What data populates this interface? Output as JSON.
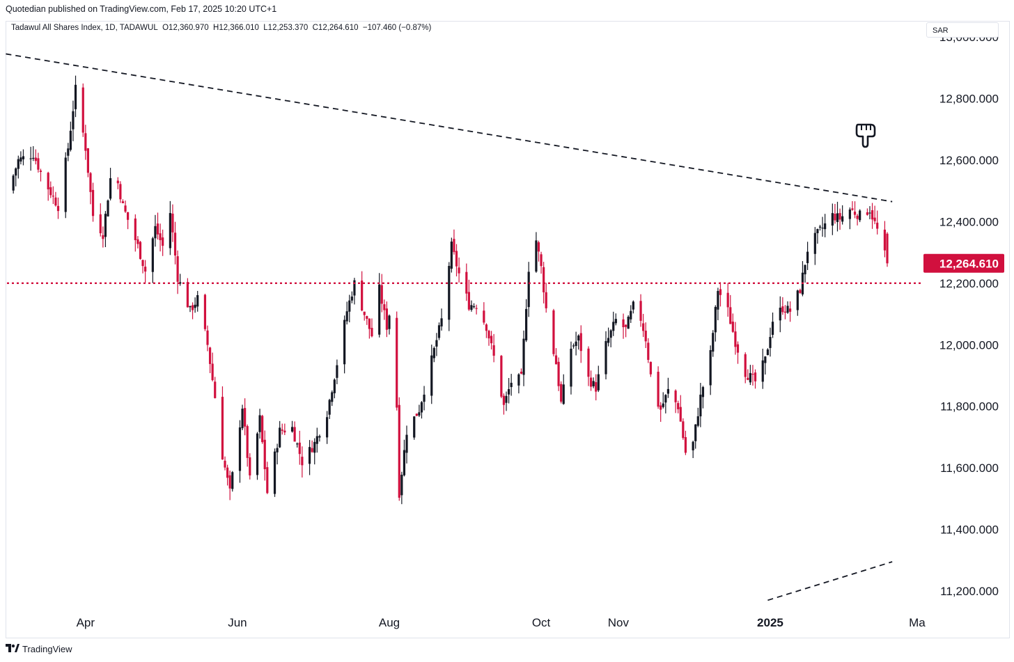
{
  "header": {
    "credit": "Quotedian published on TradingView.com, Feb 17, 2025 10:20 UTC+1"
  },
  "legend": {
    "symbol": "Tadawul All Shares Index, 1D, TADAWUL",
    "open": "O12,360.970",
    "high": "H12,366.010",
    "low": "L12,253.370",
    "close": "C12,264.610",
    "change": "−107.460 (−0.87%)"
  },
  "currency_label": "SAR",
  "footer": {
    "brand": "TradingView",
    "brand_icon": "tradingview-logo-icon"
  },
  "annotation_icon": "pointing-hand-down-icon",
  "colors": {
    "up": "#131722",
    "down": "#d1103e",
    "price_badge": "#d1103e",
    "support_line": "#d1103e",
    "trendline": "#131722"
  },
  "chart_data": {
    "type": "candlestick",
    "title": "",
    "xlabel": "",
    "ylabel": "",
    "ylim": [
      11130,
      13050
    ],
    "date_range": [
      "2024-03-01",
      "2025-02-17"
    ],
    "y_ticks": [
      "13,000.000",
      "12,800.000",
      "12,600.000",
      "12,400.000",
      "12,200.000",
      "12,000.000",
      "11,800.000",
      "11,600.000",
      "11,400.000",
      "11,200.000"
    ],
    "y_tick_values": [
      13000,
      12800,
      12600,
      12400,
      12200,
      12000,
      11800,
      11600,
      11400,
      11200
    ],
    "x_ticks": [
      {
        "label": "Apr",
        "date": "2024-04-01",
        "bold": false
      },
      {
        "label": "Jun",
        "date": "2024-06-01",
        "bold": false
      },
      {
        "label": "Aug",
        "date": "2024-08-01",
        "bold": false
      },
      {
        "label": "Oct",
        "date": "2024-10-01",
        "bold": false
      },
      {
        "label": "Nov",
        "date": "2024-11-01",
        "bold": false
      },
      {
        "label": "2025",
        "date": "2025-01-01",
        "bold": true
      },
      {
        "label": "Ma",
        "date": "2025-03-01",
        "bold": false
      }
    ],
    "last_price": 12264.61,
    "last_price_label": "12,264.610",
    "support_level": 12200,
    "trendlines": [
      {
        "style": "dashed",
        "from": {
          "date": "2024-02-29",
          "value": 12945
        },
        "to": {
          "date": "2025-02-19",
          "value": 12465
        }
      },
      {
        "style": "dashed",
        "from": {
          "date": "2024-12-31",
          "value": 11170
        },
        "to": {
          "date": "2025-02-19",
          "value": 11295
        }
      }
    ],
    "anchors": [
      [
        "2024-03-01",
        12500
      ],
      [
        "2024-03-05",
        12600
      ],
      [
        "2024-03-11",
        12620
      ],
      [
        "2024-03-15",
        12540
      ],
      [
        "2024-03-21",
        12450
      ],
      [
        "2024-03-25",
        12640
      ],
      [
        "2024-03-28",
        12830
      ],
      [
        "2024-04-01",
        12640
      ],
      [
        "2024-04-04",
        12420
      ],
      [
        "2024-04-08",
        12360
      ],
      [
        "2024-04-12",
        12600
      ],
      [
        "2024-04-16",
        12450
      ],
      [
        "2024-04-22",
        12320
      ],
      [
        "2024-04-25",
        12240
      ],
      [
        "2024-04-29",
        12380
      ],
      [
        "2024-05-02",
        12320
      ],
      [
        "2024-05-05",
        12430
      ],
      [
        "2024-05-08",
        12220
      ],
      [
        "2024-05-13",
        12110
      ],
      [
        "2024-05-16",
        12150
      ],
      [
        "2024-05-20",
        12000
      ],
      [
        "2024-05-23",
        11830
      ],
      [
        "2024-05-26",
        11640
      ],
      [
        "2024-05-29",
        11520
      ],
      [
        "2024-06-03",
        11800
      ],
      [
        "2024-06-06",
        11560
      ],
      [
        "2024-06-10",
        11760
      ],
      [
        "2024-06-13",
        11520
      ],
      [
        "2024-06-18",
        11720
      ],
      [
        "2024-06-23",
        11730
      ],
      [
        "2024-06-27",
        11620
      ],
      [
        "2024-07-02",
        11680
      ],
      [
        "2024-07-07",
        11780
      ],
      [
        "2024-07-11",
        11940
      ],
      [
        "2024-07-15",
        12110
      ],
      [
        "2024-07-18",
        12200
      ],
      [
        "2024-07-22",
        12100
      ],
      [
        "2024-07-25",
        12030
      ],
      [
        "2024-07-28",
        12180
      ],
      [
        "2024-07-31",
        12060
      ],
      [
        "2024-08-01",
        12100
      ],
      [
        "2024-08-04",
        11800
      ],
      [
        "2024-08-05",
        11520
      ],
      [
        "2024-08-08",
        11720
      ],
      [
        "2024-08-13",
        11790
      ],
      [
        "2024-08-18",
        11950
      ],
      [
        "2024-08-22",
        12080
      ],
      [
        "2024-08-26",
        12320
      ],
      [
        "2024-08-29",
        12230
      ],
      [
        "2024-09-02",
        12130
      ],
      [
        "2024-09-05",
        12130
      ],
      [
        "2024-09-09",
        12060
      ],
      [
        "2024-09-12",
        11960
      ],
      [
        "2024-09-16",
        11800
      ],
      [
        "2024-09-19",
        11880
      ],
      [
        "2024-09-23",
        11890
      ],
      [
        "2024-09-26",
        12250
      ],
      [
        "2024-09-29",
        12340
      ],
      [
        "2024-10-01",
        12250
      ],
      [
        "2024-10-04",
        12050
      ],
      [
        "2024-10-07",
        11940
      ],
      [
        "2024-10-09",
        11810
      ],
      [
        "2024-10-13",
        11990
      ],
      [
        "2024-10-16",
        12020
      ],
      [
        "2024-10-20",
        11890
      ],
      [
        "2024-10-23",
        11860
      ],
      [
        "2024-10-27",
        12000
      ],
      [
        "2024-10-31",
        12080
      ],
      [
        "2024-11-04",
        12050
      ],
      [
        "2024-11-08",
        12150
      ],
      [
        "2024-11-12",
        12020
      ],
      [
        "2024-11-15",
        11840
      ],
      [
        "2024-11-18",
        11790
      ],
      [
        "2024-11-21",
        11850
      ],
      [
        "2024-11-25",
        11800
      ],
      [
        "2024-11-28",
        11650
      ],
      [
        "2024-12-01",
        11680
      ],
      [
        "2024-12-04",
        11830
      ],
      [
        "2024-12-08",
        11970
      ],
      [
        "2024-12-11",
        12180
      ],
      [
        "2024-12-15",
        12110
      ],
      [
        "2024-12-18",
        12010
      ],
      [
        "2024-12-22",
        11910
      ],
      [
        "2024-12-26",
        11880
      ],
      [
        "2024-12-30",
        11950
      ],
      [
        "2025-01-02",
        12080
      ],
      [
        "2025-01-06",
        12120
      ],
      [
        "2025-01-09",
        12110
      ],
      [
        "2025-01-13",
        12180
      ],
      [
        "2025-01-16",
        12310
      ],
      [
        "2025-01-20",
        12360
      ],
      [
        "2025-01-23",
        12390
      ],
      [
        "2025-01-26",
        12420
      ],
      [
        "2025-01-29",
        12410
      ],
      [
        "2025-02-02",
        12440
      ],
      [
        "2025-02-06",
        12420
      ],
      [
        "2025-02-10",
        12440
      ],
      [
        "2025-02-13",
        12372
      ],
      [
        "2025-02-17",
        12264.61
      ]
    ]
  }
}
